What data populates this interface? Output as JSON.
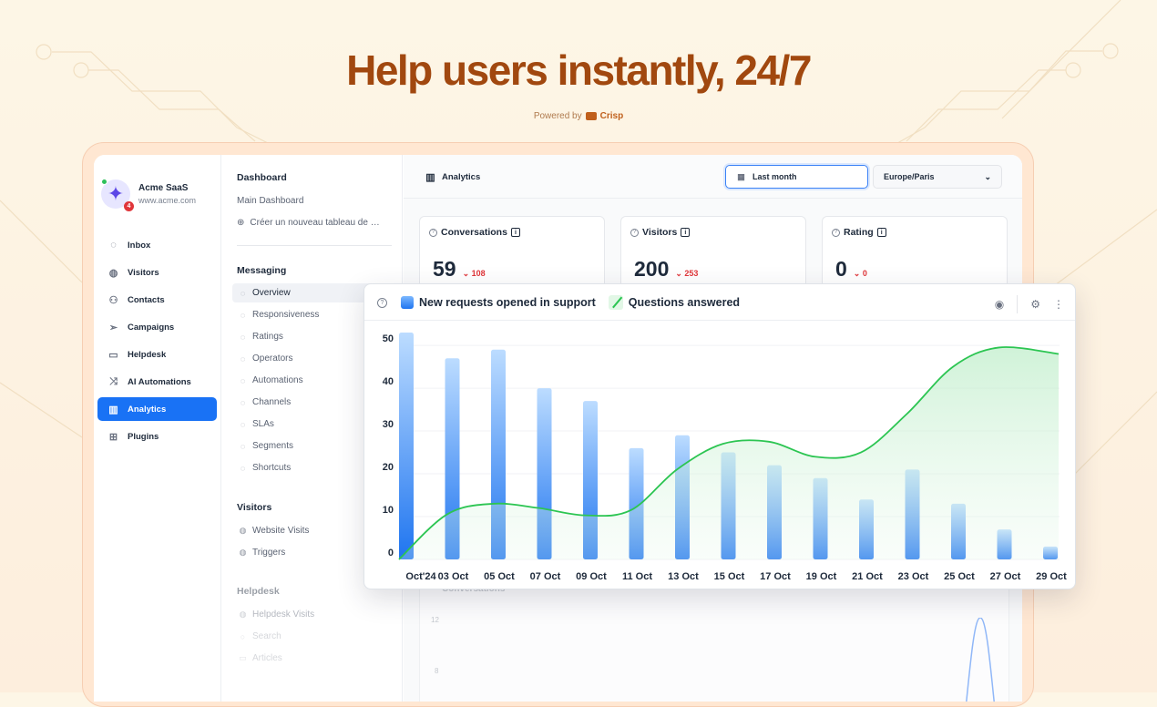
{
  "hero": {
    "title": "Help users instantly, 24/7",
    "powered_by": "Powered by",
    "brand": "Crisp"
  },
  "workspace": {
    "name": "Acme SaaS",
    "url": "www.acme.com",
    "notification_count": "4"
  },
  "nav": {
    "items": [
      {
        "label": "Inbox",
        "icon": "chat-bubble-icon",
        "active": false
      },
      {
        "label": "Visitors",
        "icon": "globe-icon",
        "active": false
      },
      {
        "label": "Contacts",
        "icon": "users-icon",
        "active": false
      },
      {
        "label": "Campaigns",
        "icon": "paper-plane-icon",
        "active": false
      },
      {
        "label": "Helpdesk",
        "icon": "book-icon",
        "active": false
      },
      {
        "label": "AI Automations",
        "icon": "shuffle-icon",
        "active": false
      },
      {
        "label": "Analytics",
        "icon": "chart-icon",
        "active": true
      },
      {
        "label": "Plugins",
        "icon": "grid-icon",
        "active": false
      }
    ]
  },
  "submenu": {
    "dashboard": {
      "heading": "Dashboard",
      "main_link": "Main Dashboard",
      "create_link": "Créer un nouveau tableau de …"
    },
    "messaging": {
      "heading": "Messaging",
      "items": [
        "Overview",
        "Responsiveness",
        "Ratings",
        "Operators",
        "Automations",
        "Channels",
        "SLAs",
        "Segments",
        "Shortcuts"
      ]
    },
    "visitors": {
      "heading": "Visitors",
      "items": [
        "Website Visits",
        "Triggers"
      ]
    },
    "helpdesk": {
      "heading": "Helpdesk",
      "items": [
        "Helpdesk Visits",
        "Search",
        "Articles"
      ]
    }
  },
  "topbar": {
    "title": "Analytics",
    "date_range": "Last month",
    "timezone": "Europe/Paris"
  },
  "stats": [
    {
      "label": "Conversations",
      "value": "59",
      "delta": "108"
    },
    {
      "label": "Visitors",
      "value": "200",
      "delta": "253"
    },
    {
      "label": "Rating",
      "value": "0",
      "delta": "0"
    }
  ],
  "background_card": {
    "title": "Conversations",
    "tick_top": "12",
    "tick_bottom": "8"
  },
  "chart_data": {
    "type": "bar",
    "series": [
      {
        "name": "New requests opened in support",
        "type": "bar",
        "color": "#1f75f0",
        "values": [
          53,
          47,
          49,
          40,
          37,
          26,
          29,
          25,
          22,
          19,
          14,
          21,
          13,
          7,
          3
        ]
      },
      {
        "name": "Questions answered",
        "type": "area",
        "color": "#2cc552",
        "values": [
          0,
          10.5,
          13,
          12,
          10.3,
          11.5,
          21,
          27,
          27.5,
          24,
          25,
          34,
          45,
          49.5,
          48
        ]
      }
    ],
    "categories": [
      "Oct'24",
      "03 Oct",
      "05 Oct",
      "07 Oct",
      "09 Oct",
      "11 Oct",
      "13 Oct",
      "15 Oct",
      "17 Oct",
      "19 Oct",
      "21 Oct",
      "23 Oct",
      "25 Oct",
      "27 Oct",
      "29 Oct"
    ],
    "yticks": [
      "0",
      "10",
      "20",
      "30",
      "40",
      "50"
    ],
    "ylim": [
      0,
      53
    ],
    "grid": true,
    "legend_position": "top-left"
  },
  "colors": {
    "accent": "#1972f5",
    "hero_title": "#a1480f",
    "negative": "#e0363a",
    "line": "#2cc552"
  }
}
